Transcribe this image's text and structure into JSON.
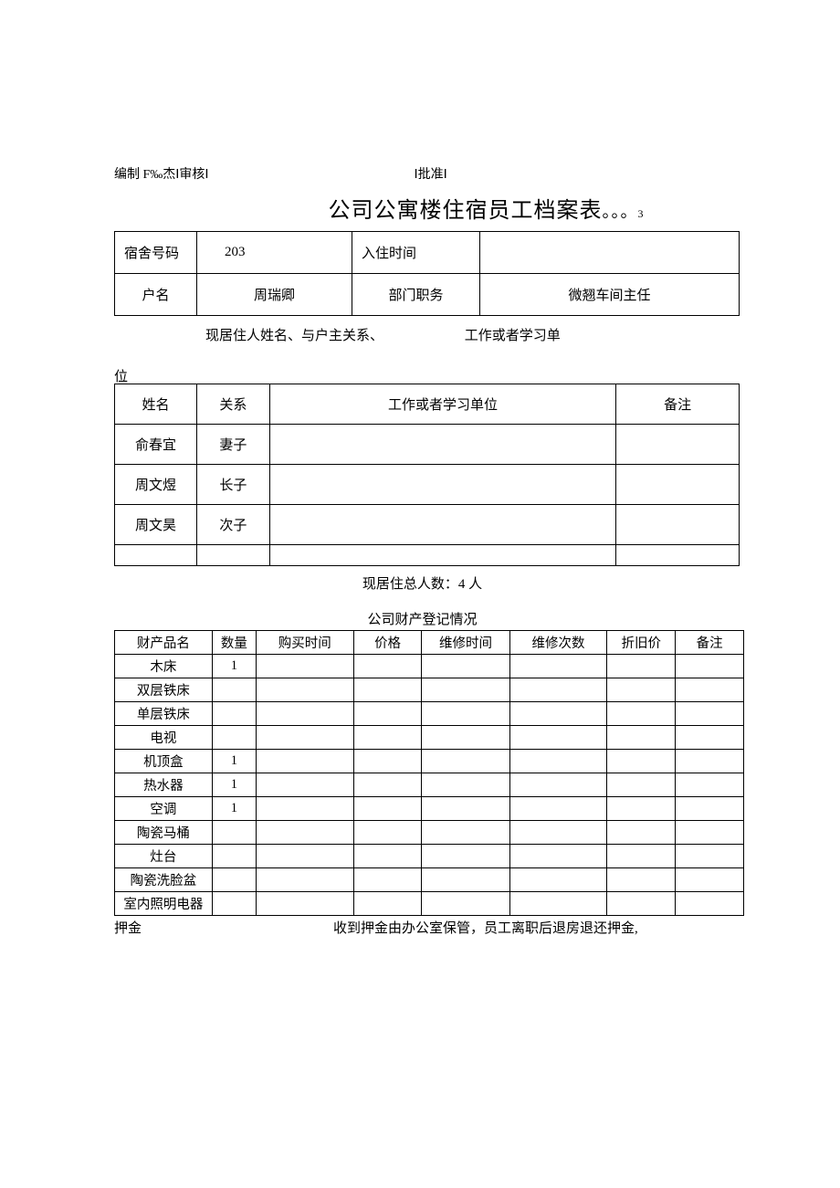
{
  "header": {
    "prefix": "编制 F‰杰Ⅰ审核Ⅰ",
    "suffix": "Ⅰ批准Ⅰ"
  },
  "title": {
    "main": "公司公寓楼住宿员工档案表",
    "trailing": "。。。",
    "num": "3"
  },
  "top": {
    "dorm_label": "宿舍号码",
    "dorm_val": "203",
    "checkin_label": "入住时间",
    "checkin_val": "",
    "holder_label": "户名",
    "holder_val": "周瑞卿",
    "dept_label": "部门职务",
    "dept_val": "微翘车间主任"
  },
  "info_line": {
    "left": "现居住人姓名、与户主关系、",
    "right": "工作或者学习单"
  },
  "sub_label": "位",
  "residents": {
    "h_name": "姓名",
    "h_rel": "关系",
    "h_work": "工作或者学习单位",
    "h_rem": "备注",
    "rows": [
      {
        "name": "俞春宜",
        "rel": "妻子",
        "work": "",
        "rem": ""
      },
      {
        "name": "周文煜",
        "rel": "长子",
        "work": "",
        "rem": ""
      },
      {
        "name": "周文昊",
        "rel": "次子",
        "work": "",
        "rem": ""
      },
      {
        "name": "",
        "rel": "",
        "work": "",
        "rem": ""
      }
    ]
  },
  "summary": "现居住总人数：4 人",
  "assets": {
    "title": "公司财产登记情况",
    "headers": [
      "财产品名",
      "数量",
      "购买时间",
      "价格",
      "维修时间",
      "维修次数",
      "折旧价",
      "备注"
    ],
    "rows": [
      {
        "name": "木床",
        "qty": "1"
      },
      {
        "name": "双层铁床",
        "qty": ""
      },
      {
        "name": "单层铁床",
        "qty": ""
      },
      {
        "name": "电视",
        "qty": ""
      },
      {
        "name": "机顶盒",
        "qty": "1"
      },
      {
        "name": "热水器",
        "qty": "1"
      },
      {
        "name": "空调",
        "qty": "1"
      },
      {
        "name": "陶瓷马桶",
        "qty": ""
      },
      {
        "name": "灶台",
        "qty": ""
      },
      {
        "name": "陶瓷洗脸盆",
        "qty": ""
      },
      {
        "name": "室内照明电器",
        "qty": ""
      }
    ]
  },
  "deposit": {
    "label": "押金",
    "text": "收到押金由办公室保管，员工离职后退房退还押金,"
  }
}
